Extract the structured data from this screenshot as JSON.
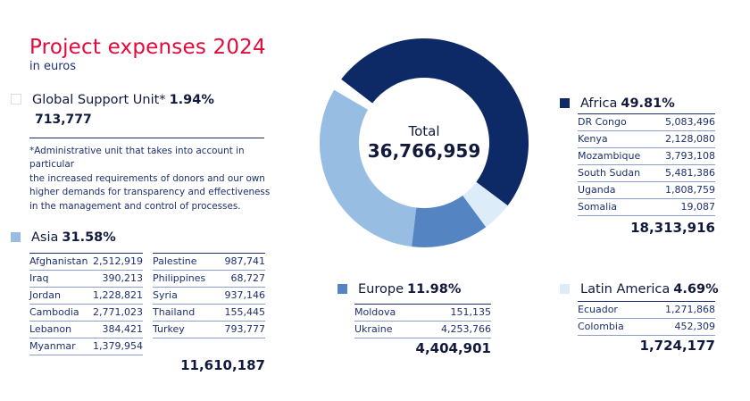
{
  "header": {
    "title": "Project expenses 2024",
    "subtitle": "in euros"
  },
  "chart_data": {
    "type": "pie",
    "title": "Project expenses 2024",
    "subtitle": "in euros",
    "center_label": "Total",
    "total": "36,766,959",
    "slices": [
      {
        "name": "Africa",
        "percent": 49.81,
        "value": 18313916,
        "color": "#0d2a66"
      },
      {
        "name": "Latin America",
        "percent": 4.69,
        "value": 1724177,
        "color": "#dcedf9"
      },
      {
        "name": "Europe",
        "percent": 11.98,
        "value": 4404901,
        "color": "#5584c2"
      },
      {
        "name": "Asia",
        "percent": 31.58,
        "value": 11610187,
        "color": "#98bde2"
      },
      {
        "name": "Global Support Unit",
        "percent": 1.94,
        "value": 713777,
        "color": "#ffffff"
      }
    ]
  },
  "gsu": {
    "label": "Global Support Unit*",
    "pct": "1.94%",
    "total": "713,777",
    "note": [
      "*Administrative unit that takes into account in particular",
      "the increased requirements of donors and our own",
      "higher demands for transparency and effectiveness",
      "in the management and control of processes."
    ]
  },
  "asia": {
    "label": "Asia",
    "pct": "31.58%",
    "total": "11,610,187",
    "left": [
      [
        "Afghanistan",
        "2,512,919"
      ],
      [
        "Iraq",
        "390,213"
      ],
      [
        "Jordan",
        "1,228,821"
      ],
      [
        "Cambodia",
        "2,771,023"
      ],
      [
        "Lebanon",
        "384,421"
      ],
      [
        "Myanmar",
        "1,379,954"
      ]
    ],
    "right": [
      [
        "Palestine",
        "987,741"
      ],
      [
        "Philippines",
        "68,727"
      ],
      [
        "Syria",
        "937,146"
      ],
      [
        "Thailand",
        "155,445"
      ],
      [
        "Turkey",
        "793,777"
      ]
    ]
  },
  "africa": {
    "label": "Africa",
    "pct": "49.81%",
    "total": "18,313,916",
    "rows": [
      [
        "DR Congo",
        "5,083,496"
      ],
      [
        "Kenya",
        "2,128,080"
      ],
      [
        "Mozambique",
        "3,793,108"
      ],
      [
        "South Sudan",
        "5,481,386"
      ],
      [
        "Uganda",
        "1,808,759"
      ],
      [
        "Somalia",
        "19,087"
      ]
    ]
  },
  "europe": {
    "label": "Europe",
    "pct": "11.98%",
    "total": "4,404,901",
    "rows": [
      [
        "Moldova",
        "151,135"
      ],
      [
        "Ukraine",
        "4,253,766"
      ]
    ]
  },
  "latam": {
    "label": "Latin America",
    "pct": "4.69%",
    "total": "1,724,177",
    "rows": [
      [
        "Ecuador",
        "1,271,868"
      ],
      [
        "Colombia",
        "452,309"
      ]
    ]
  }
}
